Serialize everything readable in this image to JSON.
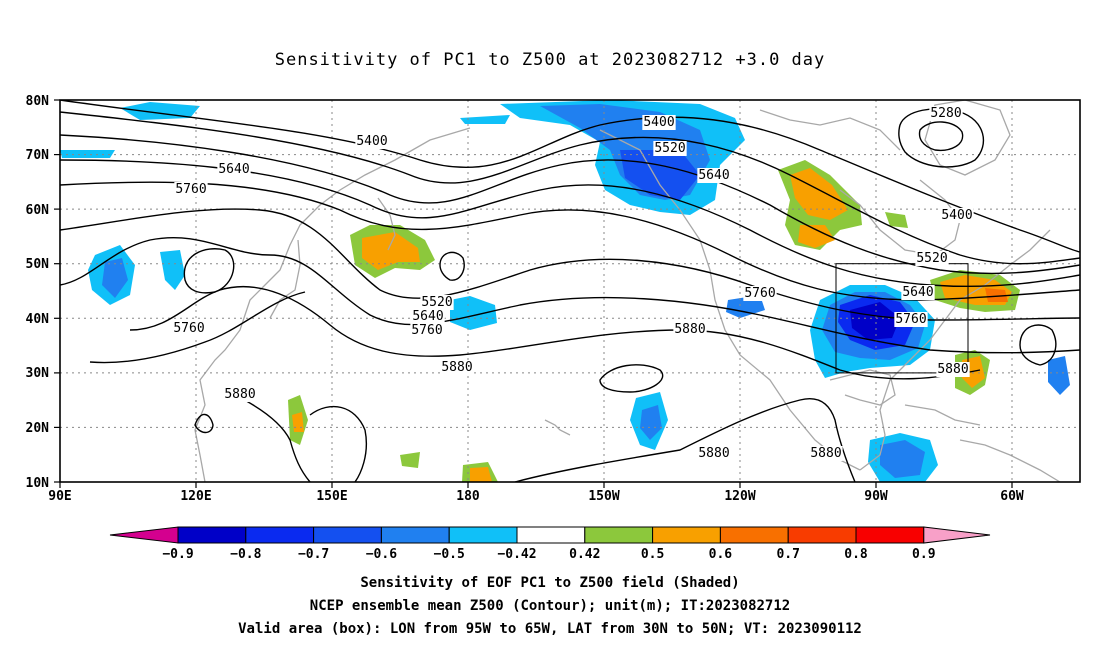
{
  "title": "Sensitivity of PC1 to Z500 at 2023082712 +3.0 day",
  "latitude_labels": [
    "80N",
    "70N",
    "60N",
    "50N",
    "40N",
    "30N",
    "20N",
    "10N"
  ],
  "longitude_labels": [
    "90E",
    "120E",
    "150E",
    "180",
    "150W",
    "120W",
    "90W",
    "60W"
  ],
  "contour_labels": [
    {
      "text": "5280"
    },
    {
      "text": "5400"
    },
    {
      "text": "5400"
    },
    {
      "text": "5400"
    },
    {
      "text": "5520"
    },
    {
      "text": "5520"
    },
    {
      "text": "5520"
    },
    {
      "text": "5640"
    },
    {
      "text": "5640"
    },
    {
      "text": "5640"
    },
    {
      "text": "5640"
    },
    {
      "text": "5760"
    },
    {
      "text": "5760"
    },
    {
      "text": "5760"
    },
    {
      "text": "5760"
    },
    {
      "text": "5760"
    },
    {
      "text": "5880"
    },
    {
      "text": "5880"
    },
    {
      "text": "5880"
    },
    {
      "text": "5880"
    },
    {
      "text": "5880"
    },
    {
      "text": "5880"
    }
  ],
  "colorbar": {
    "labels": [
      "−0.9",
      "−0.8",
      "−0.7",
      "−0.6",
      "−0.5",
      "−0.42",
      "0.42",
      "0.5",
      "0.6",
      "0.7",
      "0.8",
      "0.9"
    ],
    "colors": [
      "#d4008f",
      "#0000c8",
      "#0a2af0",
      "#1450f0",
      "#2080f0",
      "#10c0f8",
      "#ffffff",
      "#8cc83c",
      "#f8a000",
      "#f87000",
      "#f83c00",
      "#f80000",
      "#f8a0c8"
    ]
  },
  "valid_box": {
    "lon_from": "95W",
    "lon_to": "65W",
    "lat_from": "30N",
    "lat_to": "50N"
  },
  "caption": {
    "line1": "Sensitivity of EOF PC1 to Z500 field (Shaded)",
    "line2": "NCEP ensemble mean Z500 (Contour); unit(m); IT:2023082712",
    "line3": "Valid area (box): LON from 95W to 65W, LAT from 30N to 50N; VT: 2023090112"
  }
}
